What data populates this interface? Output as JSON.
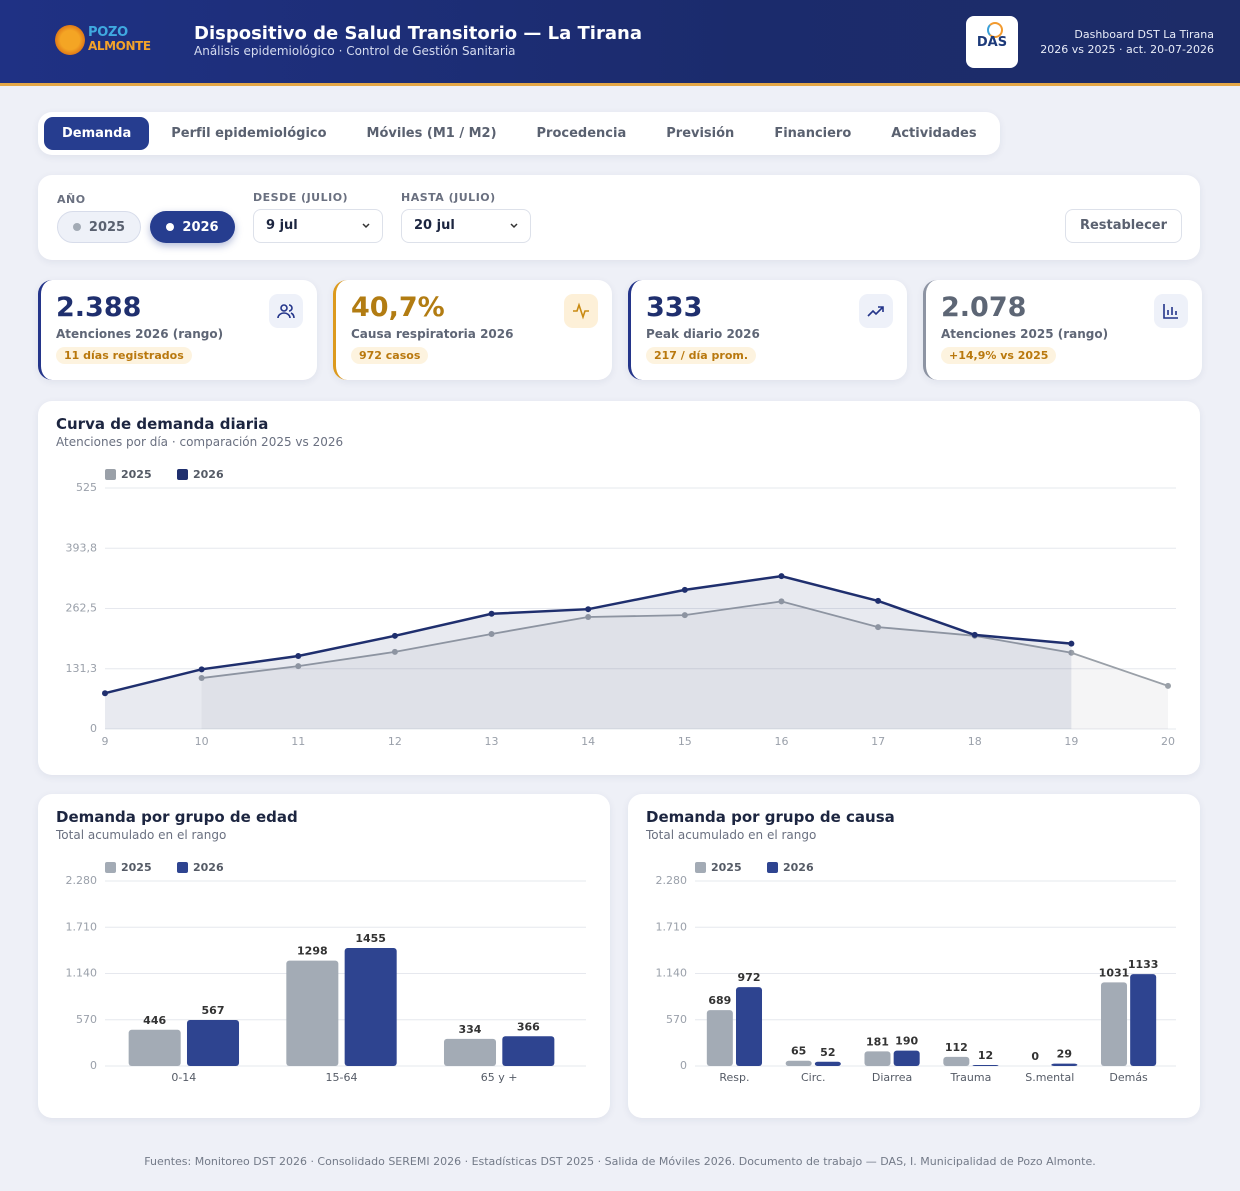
{
  "header": {
    "logo": [
      "POZO",
      "ALMONTE"
    ],
    "title": "Dispositivo de Salud Transitorio — La Tirana",
    "subtitle": "Análisis epidemiológico · Control de Gestión Sanitaria",
    "badge": "DAS",
    "meta": [
      "Dashboard DST La Tirana",
      "2026 vs 2025 · act. 20-07-2026"
    ]
  },
  "tabs": [
    "Demanda",
    "Perfil epidemiológico",
    "Móviles (M1 / M2)",
    "Procedencia",
    "Previsión",
    "Financiero",
    "Actividades"
  ],
  "filters": {
    "year_label": "AÑO",
    "years": [
      "2025",
      "2026"
    ],
    "from_label": "DESDE (JULIO)",
    "from": "9 jul",
    "to_label": "HASTA (JULIO)",
    "to": "20 jul",
    "reset": "Restablecer"
  },
  "kpis": [
    {
      "value": "2.388",
      "label": "Atenciones 2026 (rango)",
      "badge": "11 días registrados"
    },
    {
      "value": "40,7%",
      "label": "Causa respiratoria 2026",
      "badge": "972 casos"
    },
    {
      "value": "333",
      "label": "Peak diario 2026",
      "badge": "217 / día prom."
    },
    {
      "value": "2.078",
      "label": "Atenciones 2025 (rango)",
      "badge": "+14,9% vs 2025"
    }
  ],
  "chart_data": [
    {
      "type": "line",
      "title": "Curva de demanda diaria",
      "subtitle": "Atenciones por día · comparación 2025 vs 2026",
      "x": [
        9,
        10,
        11,
        12,
        13,
        14,
        15,
        16,
        17,
        18,
        19,
        20
      ],
      "xlim": [
        9,
        20
      ],
      "xticks": [
        9,
        10,
        11,
        12,
        13,
        14,
        15,
        16,
        17,
        18,
        19,
        20
      ],
      "ylim": [
        0,
        525
      ],
      "yticks": [
        0,
        {
          "value": 131.25,
          "label": "131,3"
        },
        {
          "value": 262.5,
          "label": "262,5"
        },
        {
          "value": 393.75,
          "label": "393,8"
        },
        525
      ],
      "grid": true,
      "legend": "top-left",
      "series": [
        {
          "name": "2025",
          "color": "#9aa0a8",
          "values": [
            null,
            111,
            137,
            168,
            207,
            244,
            248,
            278,
            222,
            203,
            166,
            94
          ]
        },
        {
          "name": "2026",
          "color": "#1f2f6e",
          "values": [
            78,
            130,
            159,
            203,
            251,
            261,
            303,
            333,
            279,
            205,
            186,
            null
          ]
        }
      ]
    },
    {
      "type": "bar",
      "title": "Demanda por grupo de edad",
      "subtitle": "Total acumulado en el rango",
      "categories": [
        "0-14",
        "15-64",
        "65 y +"
      ],
      "ylim": [
        0,
        2280
      ],
      "yticks": [
        0,
        570,
        {
          "value": 1140,
          "label": "1.140"
        },
        {
          "value": 1710,
          "label": "1.710"
        },
        {
          "value": 2280,
          "label": "2.280"
        }
      ],
      "grid": true,
      "legend": "top-left",
      "series": [
        {
          "name": "2025",
          "color": "#a3abb5",
          "values": [
            446,
            1298,
            334
          ]
        },
        {
          "name": "2026",
          "color": "#2e4490",
          "values": [
            567,
            1455,
            366
          ]
        }
      ]
    },
    {
      "type": "bar",
      "title": "Demanda por grupo de causa",
      "subtitle": "Total acumulado en el rango",
      "categories": [
        "Resp.",
        "Circ.",
        "Diarrea",
        "Trauma",
        "S.mental",
        "Demás"
      ],
      "ylim": [
        0,
        2280
      ],
      "yticks": [
        0,
        570,
        {
          "value": 1140,
          "label": "1.140"
        },
        {
          "value": 1710,
          "label": "1.710"
        },
        {
          "value": 2280,
          "label": "2.280"
        }
      ],
      "grid": true,
      "legend": "top-left",
      "series": [
        {
          "name": "2025",
          "color": "#a3abb5",
          "values": [
            689,
            65,
            181,
            112,
            0,
            1031
          ]
        },
        {
          "name": "2026",
          "color": "#2e4490",
          "values": [
            972,
            52,
            190,
            12,
            29,
            1133
          ]
        }
      ]
    }
  ],
  "footer": "Fuentes: Monitoreo DST 2026 · Consolidado SEREMI 2026 · Estadísticas DST 2025 · Salida de Móviles 2026. Documento de trabajo — DAS, I. Municipalidad de Pozo Almonte."
}
